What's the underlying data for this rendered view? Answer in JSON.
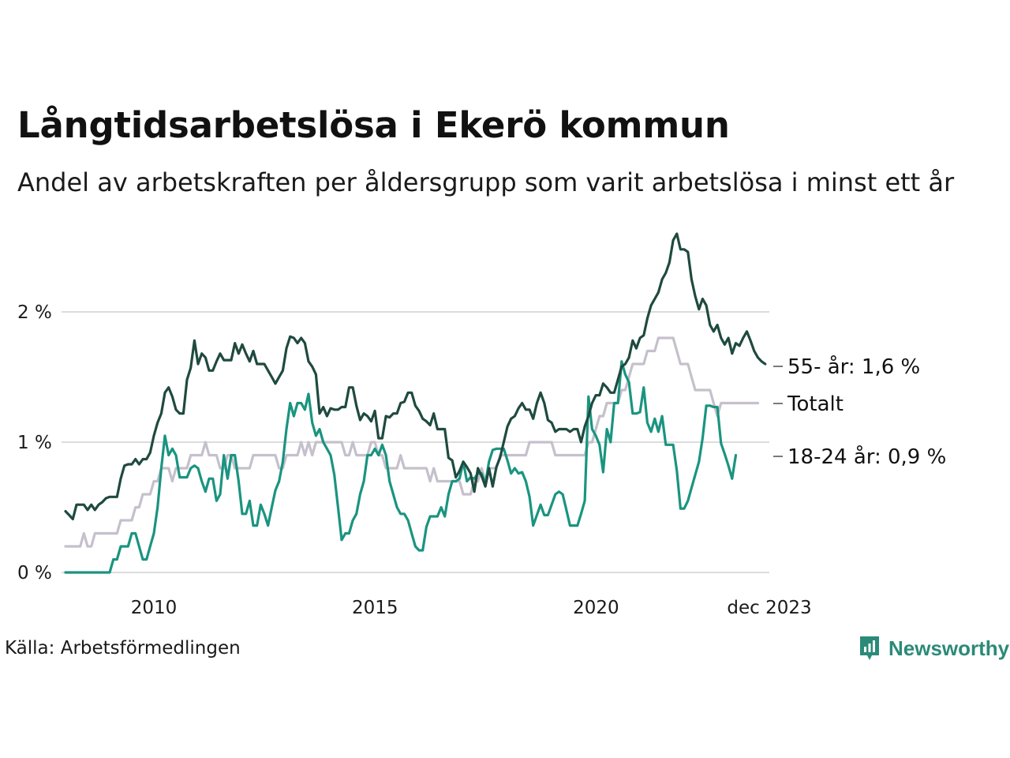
{
  "header": {
    "title": "Långtidsarbetslösa i Ekerö kommun",
    "subtitle": "Andel av arbetskraften per åldersgrupp som varit arbetslösa i minst ett år"
  },
  "footer": {
    "source": "Källa: Arbetsförmedlingen",
    "brand": "Newsworthy"
  },
  "colors": {
    "age55": "#1f4a3f",
    "total": "#c5c0cc",
    "youth": "#1a9480",
    "grid": "#dcdcdc",
    "brand": "#2b8a78"
  },
  "chart_data": {
    "type": "line",
    "title": "Långtidsarbetslösa i Ekerö kommun",
    "subtitle": "Andel av arbetskraften per åldersgrupp som varit arbetslösa i minst ett år",
    "xlabel": "",
    "ylabel": "",
    "x_start": 2008.0,
    "x_step": 0.0833,
    "xlim": [
      2008.0,
      2023.92
    ],
    "ylim": [
      0,
      2.5
    ],
    "grid": true,
    "y_ticks": [
      {
        "value": 0,
        "label": "0 %"
      },
      {
        "value": 1,
        "label": "1 %"
      },
      {
        "value": 2,
        "label": "2 %"
      }
    ],
    "x_ticks": [
      {
        "value": 2010,
        "label": "2010"
      },
      {
        "value": 2015,
        "label": "2015"
      },
      {
        "value": 2020,
        "label": "2020"
      },
      {
        "value": 2023.92,
        "label": "dec 2023"
      }
    ],
    "series": [
      {
        "name": "Totalt",
        "key": "total",
        "label": "Totalt",
        "values": [
          0.2,
          0.2,
          0.2,
          0.2,
          0.2,
          0.3,
          0.2,
          0.2,
          0.3,
          0.3,
          0.3,
          0.3,
          0.3,
          0.3,
          0.3,
          0.4,
          0.4,
          0.4,
          0.4,
          0.5,
          0.5,
          0.6,
          0.6,
          0.6,
          0.7,
          0.7,
          0.8,
          0.8,
          0.8,
          0.7,
          0.8,
          0.8,
          0.8,
          0.8,
          0.9,
          0.9,
          0.9,
          0.9,
          1.0,
          0.9,
          0.9,
          0.9,
          0.8,
          0.8,
          0.9,
          0.9,
          0.8,
          0.8,
          0.8,
          0.8,
          0.8,
          0.9,
          0.9,
          0.9,
          0.9,
          0.9,
          0.9,
          0.9,
          0.8,
          0.8,
          0.9,
          0.9,
          0.9,
          0.9,
          1.0,
          0.9,
          1.0,
          0.9,
          1.0,
          1.0,
          1.0,
          1.0,
          1.0,
          1.0,
          1.0,
          1.0,
          0.9,
          0.9,
          1.0,
          0.9,
          0.9,
          0.9,
          0.9,
          1.0,
          1.0,
          0.9,
          0.9,
          0.8,
          0.8,
          0.8,
          0.8,
          0.9,
          0.8,
          0.8,
          0.8,
          0.8,
          0.8,
          0.8,
          0.8,
          0.7,
          0.8,
          0.7,
          0.7,
          0.7,
          0.7,
          0.7,
          0.7,
          0.7,
          0.6,
          0.6,
          0.6,
          0.7,
          0.7,
          0.8,
          0.7,
          0.8,
          0.8,
          0.8,
          0.9,
          0.9,
          0.9,
          0.9,
          0.9,
          0.9,
          0.9,
          0.9,
          1.0,
          1.0,
          1.0,
          1.0,
          1.0,
          1.0,
          1.0,
          0.9,
          0.9,
          0.9,
          0.9,
          0.9,
          0.9,
          0.9,
          0.9,
          0.9,
          1.0,
          1.0,
          1.1,
          1.2,
          1.2,
          1.3,
          1.3,
          1.3,
          1.3,
          1.4,
          1.4,
          1.5,
          1.6,
          1.6,
          1.6,
          1.6,
          1.7,
          1.7,
          1.7,
          1.8,
          1.8,
          1.8,
          1.8,
          1.8,
          1.7,
          1.6,
          1.6,
          1.6,
          1.5,
          1.4,
          1.4,
          1.4,
          1.4,
          1.4,
          1.3,
          1.2,
          1.3,
          1.3,
          1.3,
          1.3,
          1.3,
          1.3,
          1.3,
          1.3,
          1.3,
          1.3,
          1.3
        ]
      },
      {
        "name": "18-24 år",
        "key": "youth",
        "label": "18-24 år: 0,9 %",
        "values": [
          0,
          0,
          0,
          0,
          0,
          0,
          0,
          0,
          0,
          0,
          0,
          0,
          0,
          0.1,
          0.1,
          0.2,
          0.2,
          0.2,
          0.3,
          0.3,
          0.2,
          0.1,
          0.1,
          0.2,
          0.3,
          0.5,
          0.8,
          1.05,
          0.9,
          0.95,
          0.9,
          0.73,
          0.73,
          0.73,
          0.8,
          0.82,
          0.8,
          0.7,
          0.62,
          0.72,
          0.72,
          0.55,
          0.6,
          0.9,
          0.72,
          0.9,
          0.9,
          0.7,
          0.45,
          0.45,
          0.55,
          0.36,
          0.36,
          0.52,
          0.45,
          0.36,
          0.5,
          0.63,
          0.7,
          0.85,
          1.1,
          1.3,
          1.2,
          1.3,
          1.3,
          1.25,
          1.37,
          1.15,
          1.05,
          1.1,
          1.0,
          0.95,
          0.9,
          0.75,
          0.5,
          0.25,
          0.3,
          0.3,
          0.4,
          0.45,
          0.6,
          0.7,
          0.9,
          0.9,
          0.95,
          0.9,
          0.98,
          0.9,
          0.7,
          0.6,
          0.5,
          0.45,
          0.45,
          0.4,
          0.3,
          0.2,
          0.17,
          0.17,
          0.35,
          0.43,
          0.43,
          0.43,
          0.5,
          0.43,
          0.6,
          0.7,
          0.7,
          0.72,
          0.85,
          0.7,
          0.73,
          0.72,
          0.76,
          0.76,
          0.68,
          0.85,
          0.94,
          0.95,
          0.95,
          0.95,
          0.86,
          0.76,
          0.8,
          0.76,
          0.77,
          0.7,
          0.58,
          0.36,
          0.44,
          0.52,
          0.44,
          0.44,
          0.52,
          0.6,
          0.62,
          0.6,
          0.48,
          0.36,
          0.36,
          0.36,
          0.45,
          0.55,
          1.35,
          1.1,
          1.05,
          0.98,
          0.77,
          1.1,
          1.0,
          1.3,
          1.3,
          1.62,
          1.52,
          1.46,
          1.22,
          1.22,
          1.23,
          1.42,
          1.15,
          1.08,
          1.18,
          1.08,
          1.2,
          0.98,
          0.98,
          0.98,
          0.78,
          0.49,
          0.49,
          0.55,
          0.65,
          0.75,
          0.85,
          1.03,
          1.28,
          1.28,
          1.27,
          1.27,
          0.99,
          0.91,
          0.82,
          0.72,
          0.9
        ]
      },
      {
        "name": "55- år",
        "key": "age55",
        "label": "55- år: 1,6 %",
        "values": [
          0.47,
          0.44,
          0.41,
          0.52,
          0.52,
          0.52,
          0.48,
          0.52,
          0.48,
          0.52,
          0.54,
          0.57,
          0.58,
          0.58,
          0.58,
          0.72,
          0.82,
          0.83,
          0.83,
          0.87,
          0.83,
          0.87,
          0.87,
          0.92,
          1.05,
          1.15,
          1.22,
          1.38,
          1.42,
          1.35,
          1.25,
          1.22,
          1.22,
          1.48,
          1.57,
          1.78,
          1.6,
          1.68,
          1.65,
          1.55,
          1.55,
          1.62,
          1.68,
          1.63,
          1.63,
          1.63,
          1.76,
          1.68,
          1.75,
          1.68,
          1.62,
          1.7,
          1.6,
          1.6,
          1.6,
          1.55,
          1.5,
          1.45,
          1.5,
          1.55,
          1.72,
          1.81,
          1.8,
          1.76,
          1.8,
          1.76,
          1.62,
          1.58,
          1.52,
          1.22,
          1.27,
          1.2,
          1.26,
          1.25,
          1.25,
          1.27,
          1.27,
          1.42,
          1.42,
          1.28,
          1.17,
          1.22,
          1.2,
          1.16,
          1.24,
          1.03,
          1.03,
          1.2,
          1.19,
          1.22,
          1.22,
          1.3,
          1.31,
          1.38,
          1.38,
          1.28,
          1.24,
          1.18,
          1.16,
          1.13,
          1.22,
          1.1,
          1.1,
          1.1,
          0.88,
          0.86,
          0.73,
          0.78,
          0.85,
          0.81,
          0.76,
          0.62,
          0.8,
          0.74,
          0.66,
          0.8,
          0.66,
          0.81,
          0.88,
          1.0,
          1.12,
          1.18,
          1.2,
          1.26,
          1.3,
          1.25,
          1.25,
          1.18,
          1.3,
          1.38,
          1.3,
          1.17,
          1.15,
          1.08,
          1.1,
          1.1,
          1.1,
          1.08,
          1.1,
          1.1,
          1.0,
          1.12,
          1.2,
          1.3,
          1.36,
          1.36,
          1.45,
          1.42,
          1.38,
          1.38,
          1.48,
          1.58,
          1.6,
          1.65,
          1.78,
          1.72,
          1.8,
          1.82,
          1.95,
          2.05,
          2.1,
          2.15,
          2.25,
          2.3,
          2.38,
          2.55,
          2.6,
          2.48,
          2.48,
          2.46,
          2.25,
          2.12,
          2.02,
          2.1,
          2.05,
          1.9,
          1.85,
          1.9,
          1.8,
          1.75,
          1.8,
          1.68,
          1.76,
          1.74,
          1.8,
          1.85,
          1.78,
          1.7,
          1.65,
          1.62,
          1.6
        ]
      }
    ]
  }
}
